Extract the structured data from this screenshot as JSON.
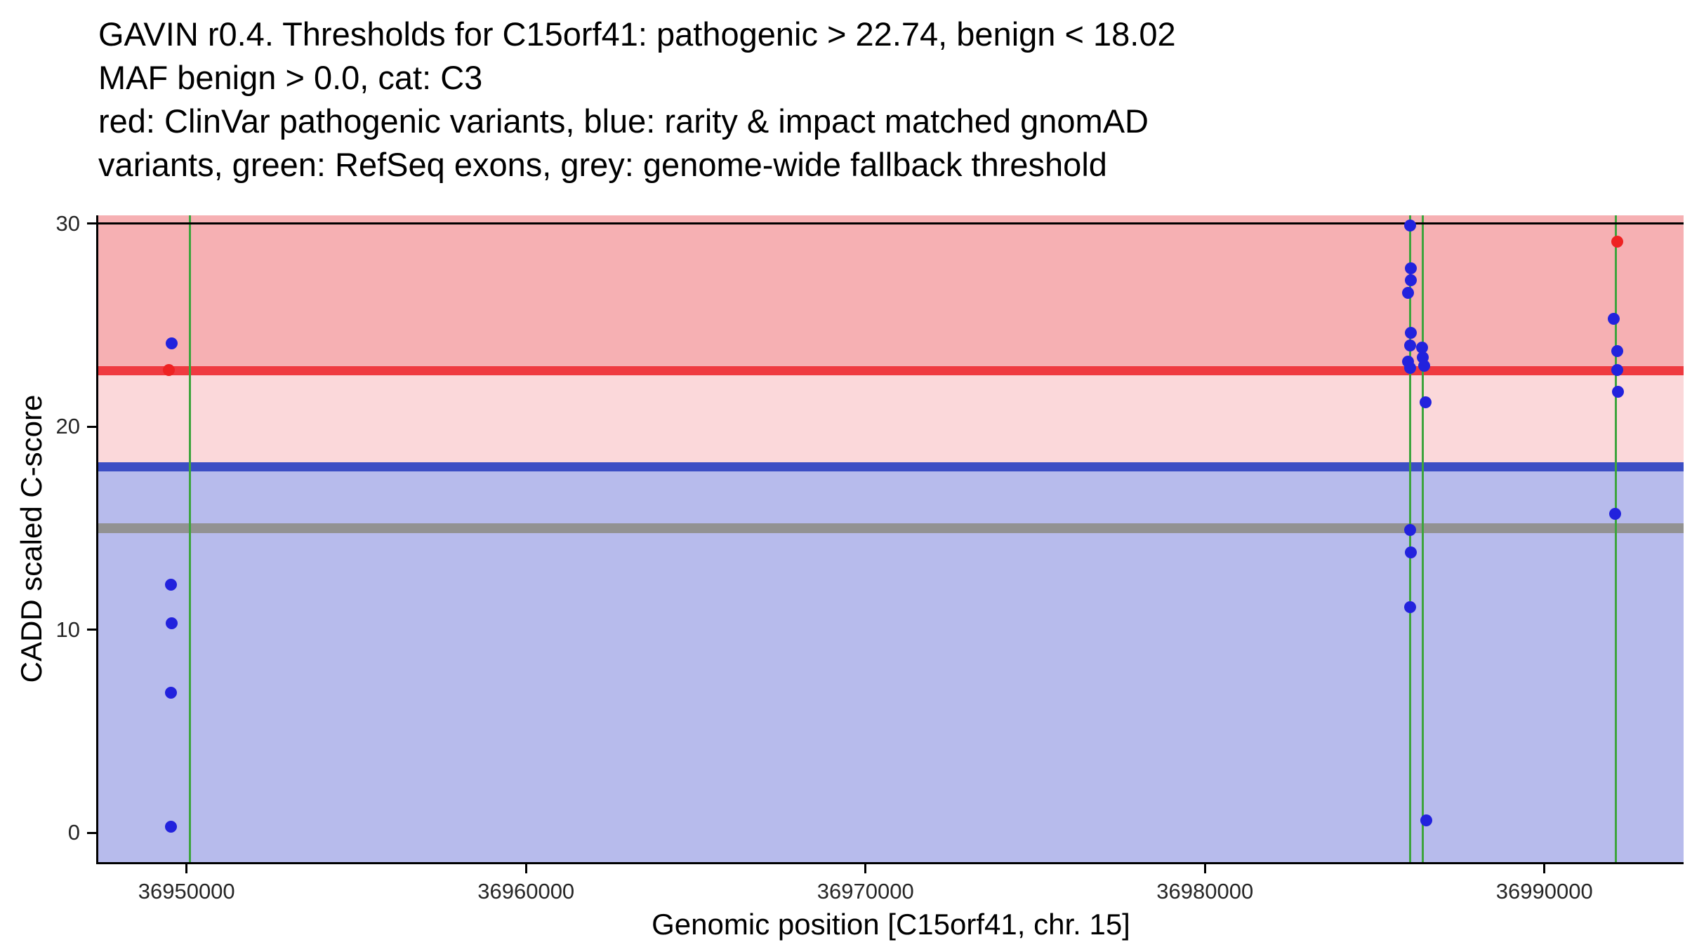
{
  "title": {
    "lines": [
      "GAVIN r0.4. Thresholds for C15orf41: pathogenic > 22.74, benign < 18.02",
      "MAF benign > 0.0, cat: C3",
      "red: ClinVar pathogenic variants, blue: rarity & impact matched gnomAD",
      "variants, green: RefSeq exons, grey: genome-wide fallback threshold"
    ]
  },
  "chart_data": {
    "type": "scatter",
    "title": "GAVIN r0.4. Thresholds for C15orf41",
    "xlabel": "Genomic position [C15orf41, chr. 15]",
    "ylabel": "CADD scaled C-score",
    "xlim": [
      36947400,
      36994100
    ],
    "ylim": [
      -1.45,
      30.4
    ],
    "grid": false,
    "legend_position": "none",
    "xticks": [
      36950000,
      36960000,
      36970000,
      36980000,
      36990000
    ],
    "xtick_labels": [
      "36950000",
      "36960000",
      "36970000",
      "36980000",
      "36990000"
    ],
    "yticks": [
      0,
      10,
      20,
      30
    ],
    "ytick_labels": [
      "0",
      "10",
      "20",
      "30"
    ],
    "thresholds": {
      "pathogenic_gt": 22.74,
      "benign_lt": 18.02,
      "maf_benign_gt": 0.0,
      "category": "C3",
      "genome_wide_fallback": 15.0
    },
    "regions": [
      {
        "name": "pathogenic-zone",
        "from": 22.74,
        "to": 30.4,
        "color": "#f6b0b3"
      },
      {
        "name": "intermediate-zone",
        "from": 18.02,
        "to": 22.74,
        "color": "#fbd8da"
      },
      {
        "name": "benign-zone",
        "from": -1.45,
        "to": 18.02,
        "color": "#b7bbec"
      }
    ],
    "hlines": [
      {
        "name": "genome-wide-fallback-threshold",
        "y": 15.0,
        "color": "#929292",
        "thickness": 14
      },
      {
        "name": "benign-threshold",
        "y": 18.02,
        "color": "#3c4ec4",
        "thickness": 13
      },
      {
        "name": "pathogenic-threshold",
        "y": 22.74,
        "color": "#ef3a40",
        "thickness": 13
      }
    ],
    "vlines": {
      "name": "refseq-exon",
      "color": "#3da43d",
      "width": 3,
      "x": [
        36950100,
        36986050,
        36986420,
        36992100
      ]
    },
    "top_border_y": 30,
    "point_diameter": 17,
    "series": [
      {
        "id": "gnomad",
        "name": "rarity & impact matched gnomAD variants",
        "color": "#2222dd",
        "points": [
          [
            36949560,
            24.1
          ],
          [
            36949540,
            12.2
          ],
          [
            36949560,
            10.3
          ],
          [
            36949550,
            6.9
          ],
          [
            36949550,
            0.3
          ],
          [
            36986040,
            29.9
          ],
          [
            36986060,
            27.8
          ],
          [
            36986060,
            27.2
          ],
          [
            36985990,
            26.6
          ],
          [
            36986070,
            24.6
          ],
          [
            36986040,
            24.0
          ],
          [
            36985990,
            23.2
          ],
          [
            36986040,
            22.9
          ],
          [
            36986400,
            23.9
          ],
          [
            36986420,
            23.4
          ],
          [
            36986460,
            23.0
          ],
          [
            36986490,
            21.2
          ],
          [
            36986050,
            14.9
          ],
          [
            36986060,
            13.8
          ],
          [
            36986040,
            11.1
          ],
          [
            36986530,
            0.6
          ],
          [
            36992050,
            25.3
          ],
          [
            36992140,
            23.7
          ],
          [
            36992140,
            22.8
          ],
          [
            36992160,
            21.7
          ],
          [
            36992080,
            15.7
          ]
        ]
      },
      {
        "id": "clinvar",
        "name": "ClinVar pathogenic variants",
        "color": "#ee2222",
        "points": [
          [
            36949480,
            22.8
          ],
          [
            36992150,
            29.1
          ]
        ]
      }
    ]
  }
}
